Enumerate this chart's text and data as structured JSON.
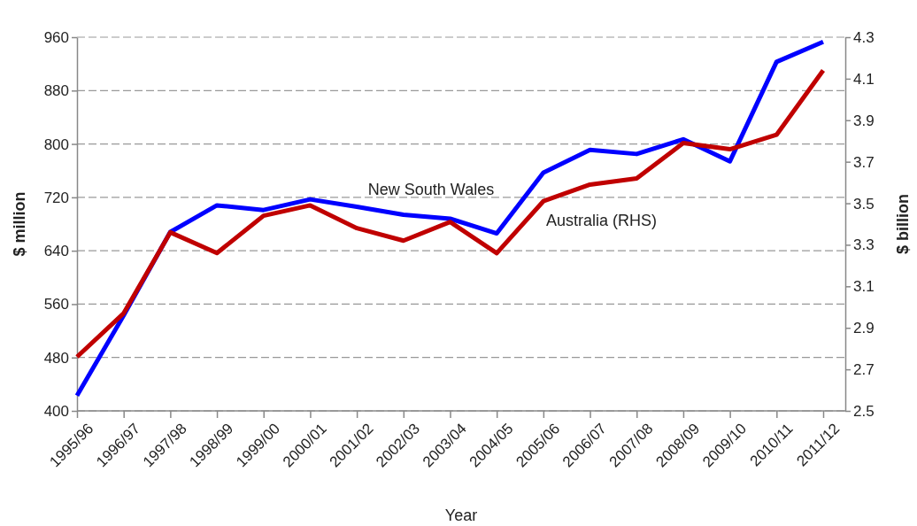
{
  "chart_data": {
    "type": "line",
    "xlabel": "Year",
    "ylabel": "$ million",
    "y2label": "$ billion",
    "categories": [
      "1995/96",
      "1996/97",
      "1997/98",
      "1998/99",
      "1999/00",
      "2000/01",
      "2001/02",
      "2002/03",
      "2003/04",
      "2004/05",
      "2005/06",
      "2006/07",
      "2007/08",
      "2008/09",
      "2009/10",
      "2010/11",
      "2011/12"
    ],
    "series": [
      {
        "name": "New South Wales",
        "color": "#0000ff",
        "values": [
          423,
          543,
          668,
          708,
          701,
          717,
          706,
          694,
          688,
          666,
          757,
          791,
          785,
          807,
          774,
          923,
          953
        ]
      },
      {
        "name": "Australia (RHS)",
        "color": "#c00000",
        "axis": "y2",
        "values": [
          2.76,
          2.97,
          3.36,
          3.26,
          3.44,
          3.49,
          3.38,
          3.32,
          3.41,
          3.26,
          3.51,
          3.59,
          3.62,
          3.79,
          3.76,
          3.83,
          4.14
        ]
      }
    ],
    "ylim": [
      400,
      960
    ],
    "yticks": [
      400,
      480,
      560,
      640,
      720,
      800,
      880,
      960
    ],
    "y2lim": [
      2.5,
      4.3
    ],
    "y2ticks": [
      2.5,
      2.7,
      2.9,
      3.1,
      3.3,
      3.5,
      3.7,
      3.9,
      4.1,
      4.3
    ],
    "grid": "y",
    "line_style": "solid",
    "marker": "none"
  }
}
